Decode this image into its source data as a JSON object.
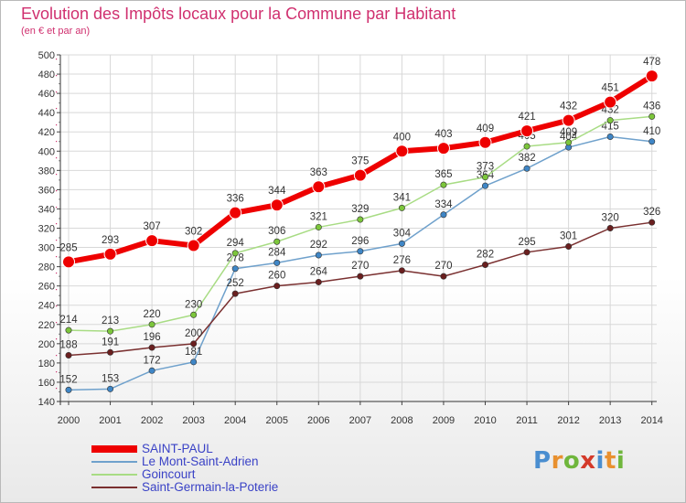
{
  "header": {
    "title": "Evolution des Impôts locaux pour la Commune par Habitant",
    "subtitle": "(en € et par an)"
  },
  "brand": {
    "letters": [
      "P",
      "r",
      "o",
      "x",
      "i",
      "t",
      "i"
    ]
  },
  "colors": {
    "brand": [
      "#4a8ed0",
      "#e8902f",
      "#6fb63c",
      "#d43a2a",
      "#4a8ed0",
      "#e8902f",
      "#6fb63c"
    ],
    "grid": "#d8d8d8",
    "title": "#d0306f",
    "legend_text": "#3a42c6"
  },
  "chart_data": {
    "type": "line",
    "title": "Evolution des Impôts locaux pour la Commune par Habitant",
    "subtitle": "(en € et par an)",
    "xlabel": "",
    "ylabel": "",
    "x": [
      "2000",
      "2001",
      "2002",
      "2003",
      "2004",
      "2005",
      "2006",
      "2007",
      "2008",
      "2009",
      "2010",
      "2011",
      "2012",
      "2013",
      "2014"
    ],
    "ylim": [
      140,
      500
    ],
    "yticks": [
      140,
      160,
      180,
      200,
      220,
      240,
      260,
      280,
      300,
      320,
      340,
      360,
      380,
      400,
      420,
      440,
      460,
      480,
      500
    ],
    "grid": true,
    "legend_position": "bottom-left",
    "series": [
      {
        "name": "SAINT-PAUL",
        "color": "#ee0000",
        "marker": "#ee0000",
        "width": 6,
        "radius": 6.5,
        "values": [
          285,
          293,
          307,
          302,
          336,
          344,
          363,
          375,
          400,
          403,
          409,
          421,
          432,
          451,
          478
        ]
      },
      {
        "name": "Le Mont-Saint-Adrien",
        "color": "#6fa1cc",
        "marker": "#3f86c6",
        "width": 1.5,
        "radius": 3.2,
        "values": [
          152,
          153,
          172,
          181,
          278,
          284,
          292,
          296,
          304,
          334,
          364,
          382,
          404,
          415,
          410
        ]
      },
      {
        "name": "Goincourt",
        "color": "#a8dc84",
        "marker": "#7cc63b",
        "width": 1.5,
        "radius": 3.2,
        "values": [
          214,
          213,
          220,
          230,
          294,
          306,
          321,
          329,
          341,
          365,
          373,
          405,
          409,
          432,
          436
        ]
      },
      {
        "name": "Saint-Germain-la-Poterie",
        "color": "#7a3030",
        "marker": "#6a1f1f",
        "width": 1.5,
        "radius": 3.2,
        "values": [
          188,
          191,
          196,
          200,
          252,
          260,
          264,
          270,
          276,
          270,
          282,
          295,
          301,
          320,
          326
        ]
      }
    ]
  }
}
